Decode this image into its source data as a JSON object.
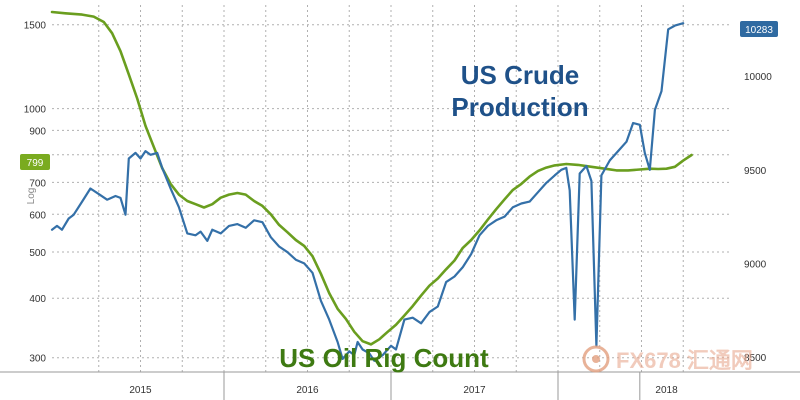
{
  "chart_data": {
    "type": "line",
    "left_axis": {
      "scale": "log",
      "ticks": [
        300,
        400,
        500,
        600,
        700,
        800,
        900,
        1000,
        1500
      ],
      "tick_labels": [
        "300",
        "400",
        "500",
        "600",
        "700",
        "",
        "900",
        "1000",
        "1500"
      ],
      "range": [
        280,
        1650
      ],
      "label": "Log",
      "badge": "799",
      "badge_value": 799,
      "badge_color": "#7aab20"
    },
    "right_axis": {
      "scale": "linear",
      "ticks": [
        8500,
        9000,
        9500,
        10000
      ],
      "tick_labels": [
        "8500",
        "9000",
        "9500",
        "10000"
      ],
      "range": [
        8420,
        10380
      ],
      "badge": "10283",
      "badge_value": 10283,
      "badge_color": "#2f6aa1"
    },
    "x_axis": {
      "unit": "year fraction",
      "range": [
        2014.47,
        2018.53
      ],
      "year_labels": [
        {
          "label": "2015",
          "center": 2015.0
        },
        {
          "label": "2016",
          "center": 2016.0
        },
        {
          "label": "2017",
          "center": 2017.0
        },
        {
          "label": "2018",
          "center": 2018.15
        }
      ],
      "separators": [
        2015.5,
        2016.5,
        2017.5,
        2017.99
      ],
      "grid": [
        2014.75,
        2015.0,
        2015.25,
        2015.5,
        2015.75,
        2016.0,
        2016.25,
        2016.5,
        2016.75,
        2017.0,
        2017.25,
        2017.5,
        2017.75,
        2018.0,
        2018.25
      ]
    },
    "annotations": {
      "production": "US Crude\nProduction",
      "rig_count": "US Oil Rig Count"
    },
    "series": [
      {
        "key": "rig_count",
        "axis": "left",
        "color": "#6a9e1f",
        "points": [
          [
            2014.47,
            1595
          ],
          [
            2014.55,
            1585
          ],
          [
            2014.65,
            1575
          ],
          [
            2014.72,
            1560
          ],
          [
            2014.78,
            1520
          ],
          [
            2014.83,
            1440
          ],
          [
            2014.88,
            1320
          ],
          [
            2014.93,
            1180
          ],
          [
            2014.98,
            1050
          ],
          [
            2015.03,
            920
          ],
          [
            2015.08,
            830
          ],
          [
            2015.13,
            750
          ],
          [
            2015.18,
            695
          ],
          [
            2015.23,
            660
          ],
          [
            2015.28,
            640
          ],
          [
            2015.33,
            630
          ],
          [
            2015.38,
            620
          ],
          [
            2015.43,
            630
          ],
          [
            2015.48,
            650
          ],
          [
            2015.53,
            660
          ],
          [
            2015.58,
            665
          ],
          [
            2015.63,
            660
          ],
          [
            2015.68,
            640
          ],
          [
            2015.73,
            625
          ],
          [
            2015.78,
            600
          ],
          [
            2015.83,
            570
          ],
          [
            2015.88,
            550
          ],
          [
            2015.93,
            530
          ],
          [
            2015.98,
            515
          ],
          [
            2016.03,
            490
          ],
          [
            2016.08,
            450
          ],
          [
            2016.13,
            410
          ],
          [
            2016.18,
            380
          ],
          [
            2016.23,
            362
          ],
          [
            2016.28,
            340
          ],
          [
            2016.33,
            325
          ],
          [
            2016.38,
            320
          ],
          [
            2016.43,
            328
          ],
          [
            2016.48,
            340
          ],
          [
            2016.53,
            352
          ],
          [
            2016.58,
            368
          ],
          [
            2016.63,
            385
          ],
          [
            2016.68,
            405
          ],
          [
            2016.73,
            425
          ],
          [
            2016.78,
            440
          ],
          [
            2016.83,
            460
          ],
          [
            2016.88,
            480
          ],
          [
            2016.93,
            510
          ],
          [
            2016.98,
            530
          ],
          [
            2017.03,
            555
          ],
          [
            2017.08,
            585
          ],
          [
            2017.13,
            615
          ],
          [
            2017.18,
            645
          ],
          [
            2017.23,
            675
          ],
          [
            2017.28,
            695
          ],
          [
            2017.33,
            720
          ],
          [
            2017.38,
            740
          ],
          [
            2017.43,
            752
          ],
          [
            2017.48,
            760
          ],
          [
            2017.55,
            765
          ],
          [
            2017.62,
            762
          ],
          [
            2017.7,
            755
          ],
          [
            2017.78,
            748
          ],
          [
            2017.85,
            742
          ],
          [
            2017.92,
            742
          ],
          [
            2017.99,
            745
          ],
          [
            2018.05,
            748
          ],
          [
            2018.1,
            747
          ],
          [
            2018.15,
            748
          ],
          [
            2018.2,
            755
          ],
          [
            2018.25,
            778
          ],
          [
            2018.3,
            799
          ]
        ]
      },
      {
        "key": "production",
        "axis": "right",
        "color": "#3470a8",
        "points": [
          [
            2014.47,
            9180
          ],
          [
            2014.5,
            9200
          ],
          [
            2014.53,
            9180
          ],
          [
            2014.57,
            9240
          ],
          [
            2014.6,
            9260
          ],
          [
            2014.65,
            9330
          ],
          [
            2014.7,
            9400
          ],
          [
            2014.75,
            9370
          ],
          [
            2014.8,
            9340
          ],
          [
            2014.85,
            9360
          ],
          [
            2014.88,
            9350
          ],
          [
            2014.91,
            9260
          ],
          [
            2014.93,
            9560
          ],
          [
            2014.97,
            9590
          ],
          [
            2015.0,
            9560
          ],
          [
            2015.03,
            9600
          ],
          [
            2015.06,
            9580
          ],
          [
            2015.1,
            9590
          ],
          [
            2015.13,
            9510
          ],
          [
            2015.18,
            9400
          ],
          [
            2015.23,
            9300
          ],
          [
            2015.28,
            9160
          ],
          [
            2015.33,
            9150
          ],
          [
            2015.36,
            9170
          ],
          [
            2015.4,
            9120
          ],
          [
            2015.43,
            9180
          ],
          [
            2015.48,
            9160
          ],
          [
            2015.53,
            9200
          ],
          [
            2015.58,
            9210
          ],
          [
            2015.63,
            9190
          ],
          [
            2015.68,
            9230
          ],
          [
            2015.73,
            9220
          ],
          [
            2015.78,
            9140
          ],
          [
            2015.83,
            9090
          ],
          [
            2015.88,
            9060
          ],
          [
            2015.93,
            9020
          ],
          [
            2015.98,
            9000
          ],
          [
            2016.03,
            8950
          ],
          [
            2016.08,
            8800
          ],
          [
            2016.13,
            8700
          ],
          [
            2016.18,
            8580
          ],
          [
            2016.21,
            8490
          ],
          [
            2016.25,
            8530
          ],
          [
            2016.28,
            8510
          ],
          [
            2016.3,
            8580
          ],
          [
            2016.33,
            8540
          ],
          [
            2016.37,
            8520
          ],
          [
            2016.4,
            8480
          ],
          [
            2016.45,
            8510
          ],
          [
            2016.5,
            8560
          ],
          [
            2016.53,
            8540
          ],
          [
            2016.58,
            8700
          ],
          [
            2016.63,
            8710
          ],
          [
            2016.68,
            8680
          ],
          [
            2016.73,
            8740
          ],
          [
            2016.78,
            8770
          ],
          [
            2016.83,
            8900
          ],
          [
            2016.88,
            8930
          ],
          [
            2016.93,
            8980
          ],
          [
            2016.98,
            9050
          ],
          [
            2017.03,
            9150
          ],
          [
            2017.08,
            9200
          ],
          [
            2017.13,
            9230
          ],
          [
            2017.18,
            9250
          ],
          [
            2017.23,
            9300
          ],
          [
            2017.28,
            9320
          ],
          [
            2017.33,
            9330
          ],
          [
            2017.38,
            9380
          ],
          [
            2017.43,
            9430
          ],
          [
            2017.48,
            9470
          ],
          [
            2017.52,
            9500
          ],
          [
            2017.55,
            9510
          ],
          [
            2017.57,
            9390
          ],
          [
            2017.6,
            8700
          ],
          [
            2017.63,
            9480
          ],
          [
            2017.67,
            9520
          ],
          [
            2017.7,
            9440
          ],
          [
            2017.73,
            8560
          ],
          [
            2017.76,
            9470
          ],
          [
            2017.81,
            9550
          ],
          [
            2017.86,
            9600
          ],
          [
            2017.91,
            9650
          ],
          [
            2017.95,
            9750
          ],
          [
            2017.99,
            9740
          ],
          [
            2018.02,
            9590
          ],
          [
            2018.05,
            9500
          ],
          [
            2018.08,
            9820
          ],
          [
            2018.12,
            9920
          ],
          [
            2018.16,
            10250
          ],
          [
            2018.2,
            10270
          ],
          [
            2018.25,
            10283
          ]
        ]
      }
    ],
    "watermark": "FX678 汇通网"
  }
}
